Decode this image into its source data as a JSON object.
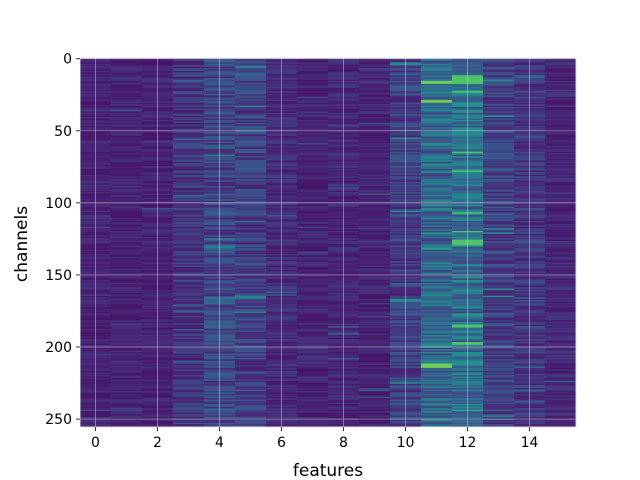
{
  "chart_data": {
    "type": "heatmap",
    "title": "",
    "xlabel": "features",
    "ylabel": "channels",
    "n_rows": 256,
    "n_cols": 16,
    "xlim": [
      -0.5,
      15.5
    ],
    "ylim": [
      255.5,
      -0.5
    ],
    "y_inverted": true,
    "x_ticks": [
      0,
      2,
      4,
      6,
      8,
      10,
      12,
      14
    ],
    "y_ticks": [
      0,
      50,
      100,
      150,
      200,
      250
    ],
    "grid": true,
    "colormap": "viridis",
    "value_range": [
      0,
      1
    ],
    "column_intensity": [
      0.12,
      0.12,
      0.12,
      0.17,
      0.22,
      0.2,
      0.14,
      0.12,
      0.13,
      0.12,
      0.2,
      0.34,
      0.36,
      0.2,
      0.17,
      0.13
    ],
    "highlights": [
      {
        "column": 11,
        "rows": [
          16,
          17,
          29,
          30,
          212,
          213,
          214
        ],
        "value": 0.78
      },
      {
        "column": 12,
        "rows": [
          12,
          13,
          14,
          15,
          16,
          17,
          23,
          65,
          78,
          107,
          120,
          126,
          127,
          128,
          129,
          185,
          186,
          197,
          198
        ],
        "value": 0.72
      },
      {
        "column": 10,
        "rows": [
          3,
          4,
          55,
          106,
          167,
          168,
          225
        ],
        "value": 0.48
      },
      {
        "column": 13,
        "rows": [
          15,
          40,
          118,
          121,
          160,
          165,
          248
        ],
        "value": 0.5
      },
      {
        "column": 5,
        "rows": [
          6,
          33,
          165,
          166,
          176
        ],
        "value": 0.45
      },
      {
        "column": 4,
        "rows": [
          67,
          130,
          131,
          166
        ],
        "value": 0.42
      },
      {
        "column": 3,
        "rows": [
          15,
          56,
          95,
          171,
          188,
          210
        ],
        "value": 0.34
      },
      {
        "column": 14,
        "rows": [
          12,
          13,
          166,
          214,
          230
        ],
        "value": 0.34
      },
      {
        "column": 8,
        "rows": [
          191,
          208
        ],
        "value": 0.32
      },
      {
        "column": 6,
        "rows": [
          162,
          164
        ],
        "value": 0.3
      }
    ]
  }
}
